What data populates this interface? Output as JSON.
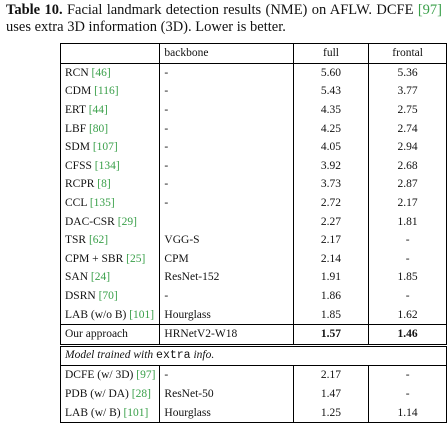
{
  "caption": {
    "label": "Table 10.",
    "text1": "Facial landmark detection results (NME) on AFLW.",
    "text2": "DCFE",
    "ref": "[97]",
    "text3": "uses extra 3D information (3D). Lower is better."
  },
  "table": {
    "header": [
      "backbone",
      "full",
      "frontal"
    ],
    "rows": [
      {
        "method": "RCN",
        "ref": "[46]",
        "backbone": "-",
        "full": "5.60",
        "frontal": "5.36"
      },
      {
        "method": "CDM",
        "ref": "[116]",
        "backbone": "-",
        "full": "5.43",
        "frontal": "3.77"
      },
      {
        "method": "ERT",
        "ref": "[44]",
        "backbone": "-",
        "full": "4.35",
        "frontal": "2.75"
      },
      {
        "method": "LBF",
        "ref": "[80]",
        "backbone": "-",
        "full": "4.25",
        "frontal": "2.74"
      },
      {
        "method": "SDM",
        "ref": "[107]",
        "backbone": "-",
        "full": "4.05",
        "frontal": "2.94"
      },
      {
        "method": "CFSS",
        "ref": "[134]",
        "backbone": "-",
        "full": "3.92",
        "frontal": "2.68"
      },
      {
        "method": "RCPR",
        "ref": "[8]",
        "backbone": "-",
        "full": "3.73",
        "frontal": "2.87"
      },
      {
        "method": "CCL",
        "ref": "[135]",
        "backbone": "-",
        "full": "2.72",
        "frontal": "2.17"
      },
      {
        "method": "DAC-CSR",
        "ref": "[29]",
        "backbone": "",
        "full": "2.27",
        "frontal": "1.81"
      },
      {
        "method": "TSR",
        "ref": "[62]",
        "backbone": "VGG-S",
        "full": "2.17",
        "frontal": "-"
      },
      {
        "method": "CPM + SBR",
        "ref": "[25]",
        "backbone": "CPM",
        "full": "2.14",
        "frontal": "-"
      },
      {
        "method": "SAN",
        "ref": "[24]",
        "backbone": "ResNet-152",
        "full": "1.91",
        "frontal": "1.85"
      },
      {
        "method": "DSRN",
        "ref": "[70]",
        "backbone": "-",
        "full": "1.86",
        "frontal": "-"
      },
      {
        "method": "LAB (w/o B)",
        "ref": "[101]",
        "backbone": "Hourglass",
        "full": "1.85",
        "frontal": "1.62"
      }
    ],
    "ours": {
      "method": "Our approach",
      "backbone": "HRNetV2-W18",
      "full": "1.57",
      "frontal": "1.46"
    },
    "section": {
      "text1": "Model trained with",
      "mono": "extra",
      "text2": "info."
    },
    "extra_rows": [
      {
        "method": "DCFE (w/ 3D)",
        "ref": "[97]",
        "backbone": "-",
        "full": "2.17",
        "frontal": "-"
      },
      {
        "method": "PDB (w/ DA)",
        "ref": "[28]",
        "backbone": "ResNet-50",
        "full": "1.47",
        "frontal": "-"
      },
      {
        "method": "LAB (w/ B)",
        "ref": "[101]",
        "backbone": "Hourglass",
        "full": "1.25",
        "frontal": "1.14"
      }
    ]
  }
}
